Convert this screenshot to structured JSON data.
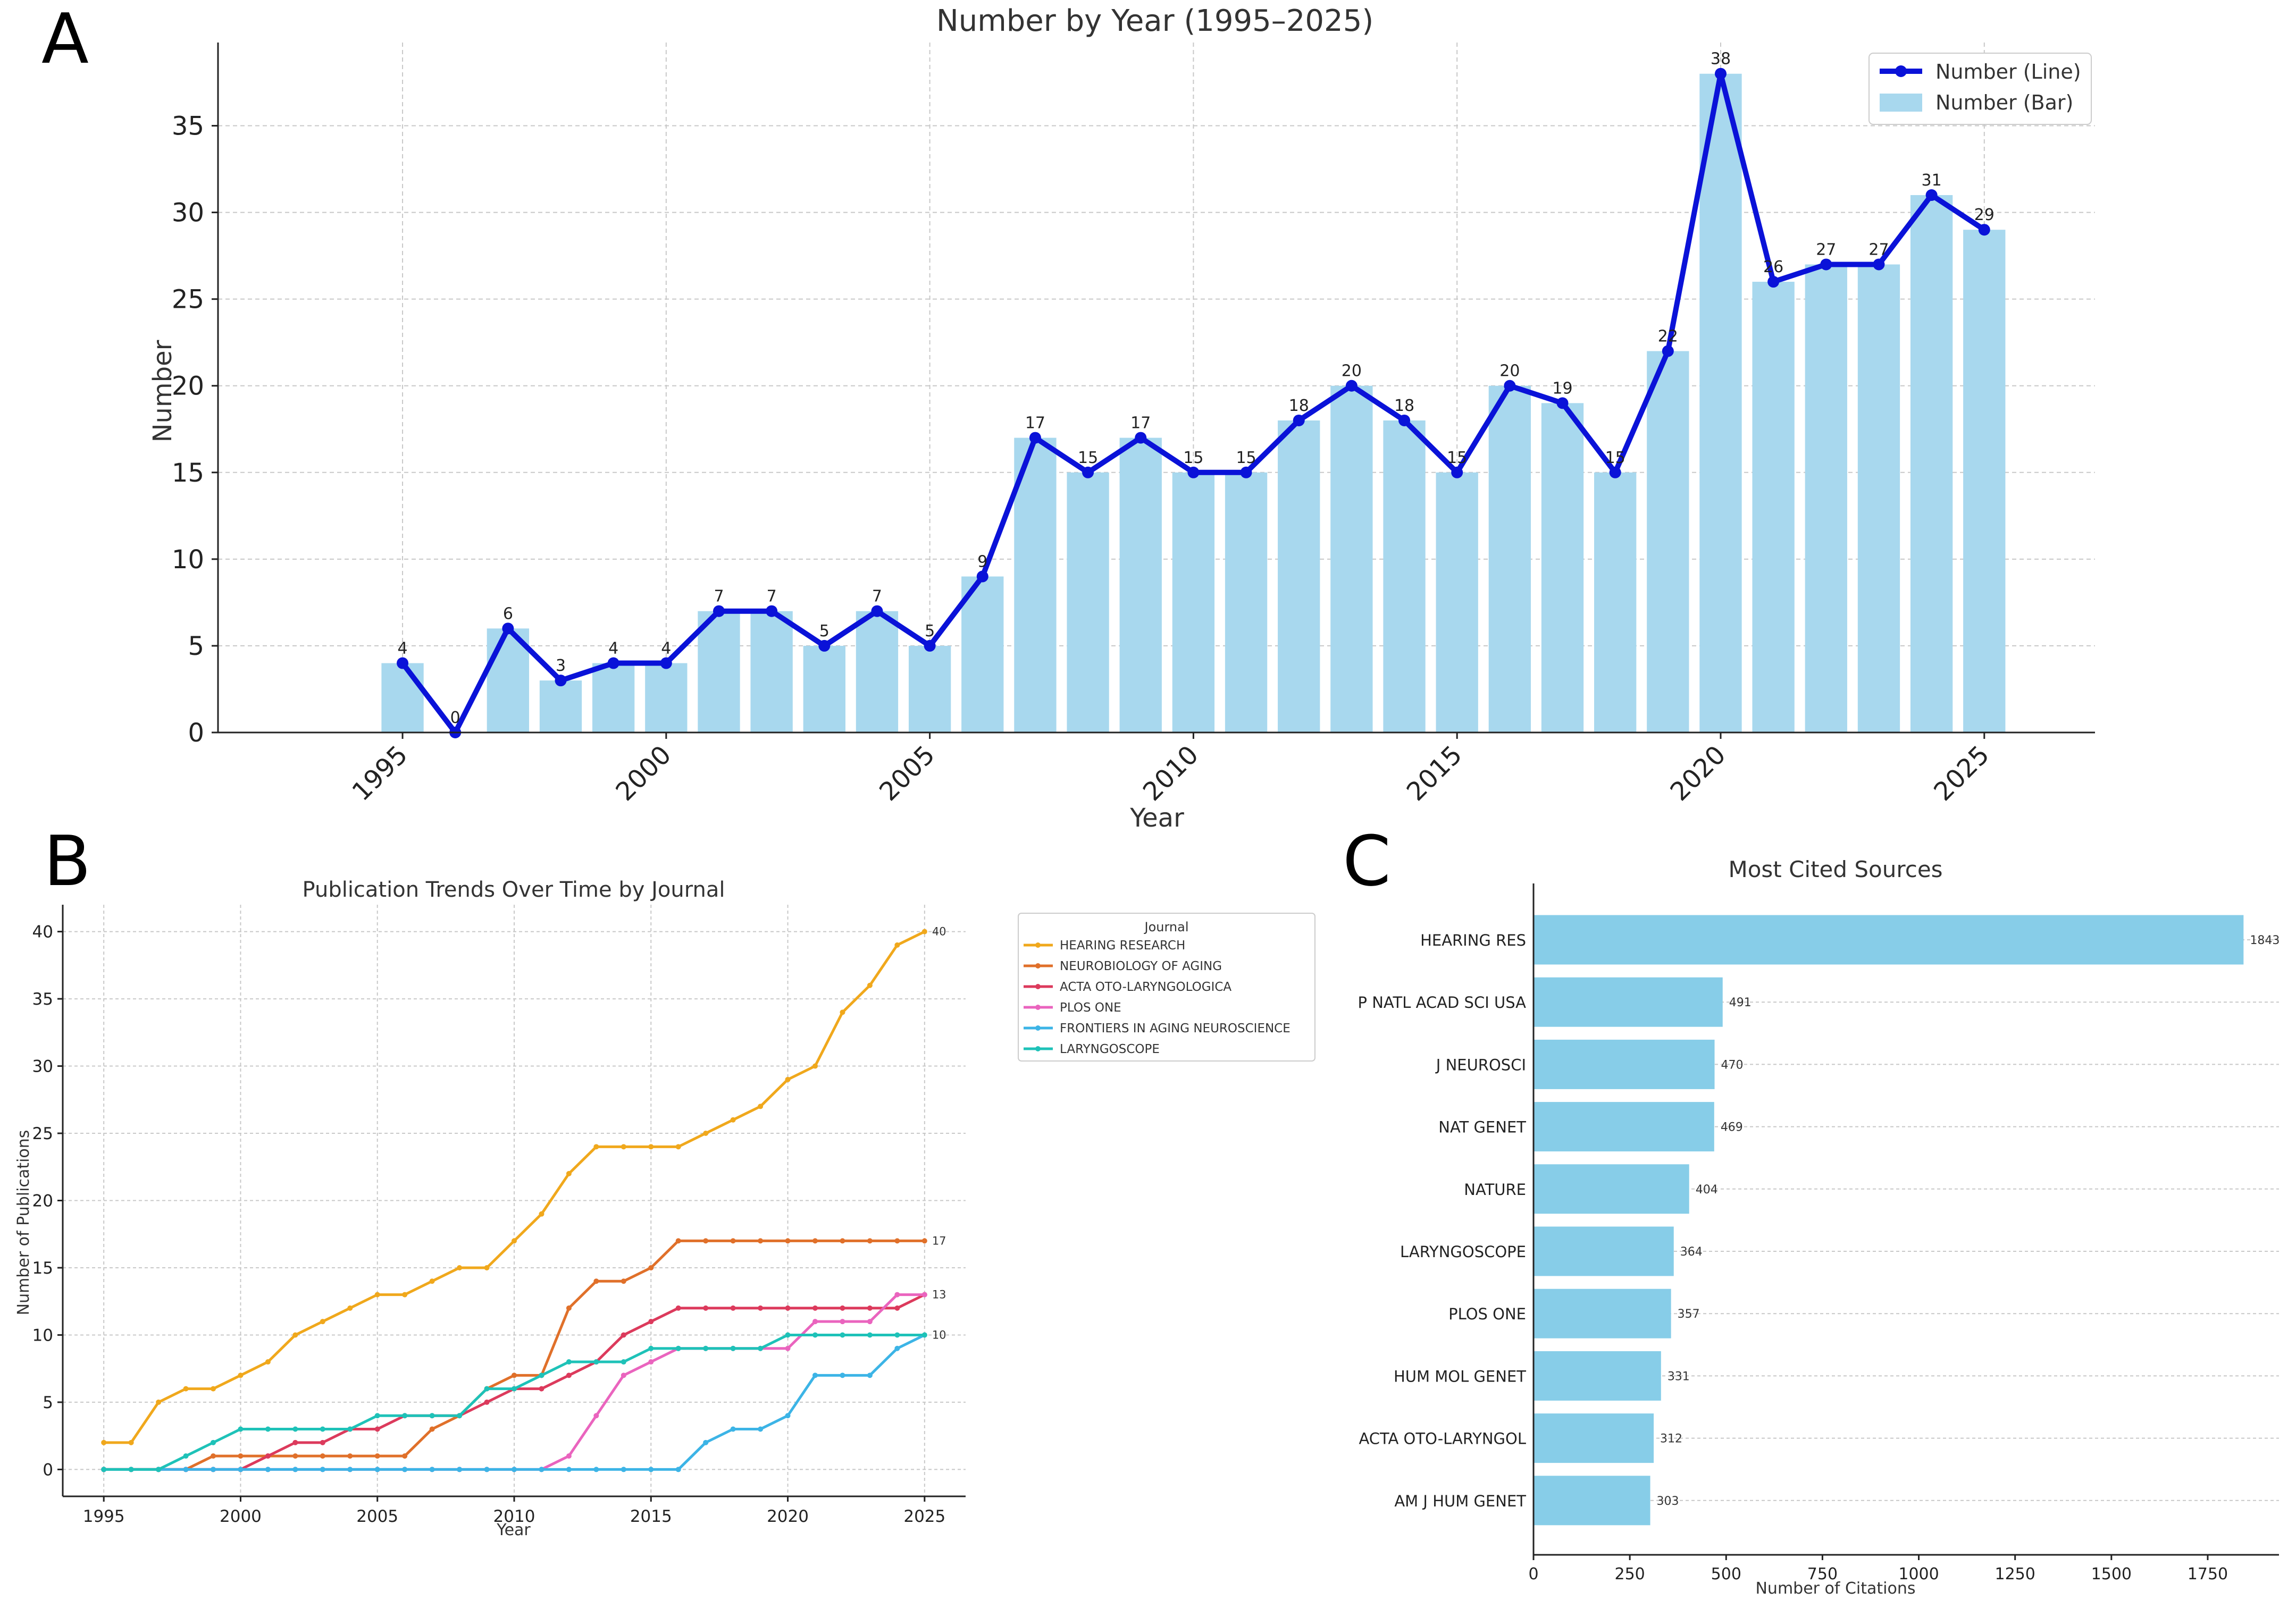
{
  "panel_labels": {
    "a": "A",
    "b": "B",
    "c": "C"
  },
  "colors": {
    "bar": "#a8d8ee",
    "line": "#0a12d8",
    "hbar": "#87cde8",
    "grid": "#c8c8c8",
    "axis": "#222222",
    "text": "#333333"
  },
  "chart_data": [
    {
      "id": "A",
      "type": "bar",
      "title": "Number by Year (1995–2025)",
      "xlabel": "Year",
      "ylabel": "Number",
      "xticks": [
        1995,
        2000,
        2005,
        2010,
        2015,
        2020,
        2025
      ],
      "yticks": [
        0,
        5,
        10,
        15,
        20,
        25,
        30,
        35
      ],
      "xlim": [
        1991.5,
        2027.1
      ],
      "ylim": [
        0,
        39.8
      ],
      "grid": true,
      "legend_position": "top-right",
      "legend": [
        "Number (Line)",
        "Number (Bar)"
      ],
      "x": [
        1995,
        1996,
        1997,
        1998,
        1999,
        2000,
        2001,
        2002,
        2003,
        2004,
        2005,
        2006,
        2007,
        2008,
        2009,
        2010,
        2011,
        2012,
        2013,
        2014,
        2015,
        2016,
        2017,
        2018,
        2019,
        2020,
        2021,
        2022,
        2023,
        2024,
        2025
      ],
      "values": [
        4,
        0,
        6,
        3,
        4,
        4,
        7,
        7,
        5,
        7,
        5,
        9,
        17,
        15,
        17,
        15,
        15,
        18,
        20,
        18,
        15,
        20,
        19,
        15,
        22,
        38,
        26,
        27,
        27,
        31,
        29
      ]
    },
    {
      "id": "B",
      "type": "line",
      "title": "Publication Trends Over Time by Journal",
      "xlabel": "Year",
      "ylabel": "Number of Publications",
      "xticks": [
        1995,
        2000,
        2005,
        2010,
        2015,
        2020,
        2025
      ],
      "yticks": [
        0,
        5,
        10,
        15,
        20,
        25,
        30,
        35,
        40
      ],
      "xlim": [
        1993.5,
        2026.5
      ],
      "ylim": [
        -2,
        42
      ],
      "grid": true,
      "legend_title": "Journal",
      "legend_position": "outside-right",
      "x": [
        1995,
        1996,
        1997,
        1998,
        1999,
        2000,
        2001,
        2002,
        2003,
        2004,
        2005,
        2006,
        2007,
        2008,
        2009,
        2010,
        2011,
        2012,
        2013,
        2014,
        2015,
        2016,
        2017,
        2018,
        2019,
        2020,
        2021,
        2022,
        2023,
        2024,
        2025
      ],
      "end_labels": [
        "40",
        "17",
        "13",
        "10"
      ],
      "series": [
        {
          "name": "HEARING RESEARCH",
          "color": "#f0a81c",
          "values": [
            2,
            2,
            5,
            6,
            6,
            7,
            8,
            10,
            11,
            12,
            13,
            13,
            14,
            15,
            15,
            17,
            19,
            22,
            24,
            24,
            24,
            24,
            25,
            26,
            27,
            29,
            30,
            34,
            36,
            39,
            40
          ]
        },
        {
          "name": "NEUROBIOLOGY OF AGING",
          "color": "#e0702a",
          "values": [
            0,
            0,
            0,
            0,
            1,
            1,
            1,
            1,
            1,
            1,
            1,
            1,
            3,
            4,
            6,
            7,
            7,
            12,
            14,
            14,
            15,
            17,
            17,
            17,
            17,
            17,
            17,
            17,
            17,
            17,
            17
          ]
        },
        {
          "name": "ACTA OTO-LARYNGOLOGICA",
          "color": "#dc3a5c",
          "values": [
            0,
            0,
            0,
            0,
            0,
            0,
            1,
            2,
            2,
            3,
            3,
            4,
            4,
            4,
            5,
            6,
            6,
            7,
            8,
            10,
            11,
            12,
            12,
            12,
            12,
            12,
            12,
            12,
            12,
            12,
            13
          ]
        },
        {
          "name": "PLOS ONE",
          "color": "#ea64be",
          "values": [
            0,
            0,
            0,
            0,
            0,
            0,
            0,
            0,
            0,
            0,
            0,
            0,
            0,
            0,
            0,
            0,
            0,
            1,
            4,
            7,
            8,
            9,
            9,
            9,
            9,
            9,
            11,
            11,
            11,
            13,
            13
          ]
        },
        {
          "name": "FRONTIERS IN AGING NEUROSCIENCE",
          "color": "#3cb4e6",
          "values": [
            0,
            0,
            0,
            0,
            0,
            0,
            0,
            0,
            0,
            0,
            0,
            0,
            0,
            0,
            0,
            0,
            0,
            0,
            0,
            0,
            0,
            0,
            2,
            3,
            3,
            4,
            7,
            7,
            7,
            9,
            10
          ]
        },
        {
          "name": "LARYNGOSCOPE",
          "color": "#1ec2b8",
          "values": [
            0,
            0,
            0,
            1,
            2,
            3,
            3,
            3,
            3,
            3,
            4,
            4,
            4,
            4,
            6,
            6,
            7,
            8,
            8,
            8,
            9,
            9,
            9,
            9,
            9,
            10,
            10,
            10,
            10,
            10,
            10
          ]
        }
      ]
    },
    {
      "id": "C",
      "type": "bar",
      "orientation": "horizontal",
      "title": "Most Cited Sources",
      "xlabel": "Number of Citations",
      "xticks": [
        0,
        250,
        500,
        750,
        1000,
        1250,
        1500,
        1750
      ],
      "xlim": [
        0,
        1935
      ],
      "grid": true,
      "categories": [
        "HEARING RES",
        "P NATL ACAD SCI USA",
        "J NEUROSCI",
        "NAT GENET",
        "NATURE",
        "LARYNGOSCOPE",
        "PLOS ONE",
        "HUM MOL GENET",
        "ACTA OTO-LARYNGOL",
        "AM J HUM GENET"
      ],
      "values": [
        1843,
        491,
        470,
        469,
        404,
        364,
        357,
        331,
        312,
        303
      ]
    }
  ]
}
